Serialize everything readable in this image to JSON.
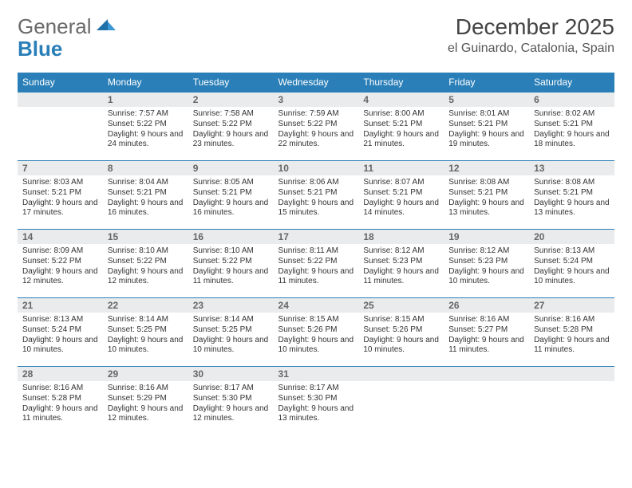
{
  "brand": {
    "part1": "General",
    "part2": "Blue"
  },
  "title": "December 2025",
  "location": "el Guinardo, Catalonia, Spain",
  "colors": {
    "header_bg": "#2a7fb8",
    "header_text": "#ffffff",
    "daynum_bg": "#e9ebec",
    "row_border": "#2a7fb8",
    "logo_gray": "#6a6a6a",
    "logo_blue": "#2a7fb8",
    "body_text": "#333333"
  },
  "daysOfWeek": [
    "Sunday",
    "Monday",
    "Tuesday",
    "Wednesday",
    "Thursday",
    "Friday",
    "Saturday"
  ],
  "startOffset": 1,
  "days": [
    {
      "n": 1,
      "sunrise": "7:57 AM",
      "sunset": "5:22 PM",
      "daylight": "9 hours and 24 minutes."
    },
    {
      "n": 2,
      "sunrise": "7:58 AM",
      "sunset": "5:22 PM",
      "daylight": "9 hours and 23 minutes."
    },
    {
      "n": 3,
      "sunrise": "7:59 AM",
      "sunset": "5:22 PM",
      "daylight": "9 hours and 22 minutes."
    },
    {
      "n": 4,
      "sunrise": "8:00 AM",
      "sunset": "5:21 PM",
      "daylight": "9 hours and 21 minutes."
    },
    {
      "n": 5,
      "sunrise": "8:01 AM",
      "sunset": "5:21 PM",
      "daylight": "9 hours and 19 minutes."
    },
    {
      "n": 6,
      "sunrise": "8:02 AM",
      "sunset": "5:21 PM",
      "daylight": "9 hours and 18 minutes."
    },
    {
      "n": 7,
      "sunrise": "8:03 AM",
      "sunset": "5:21 PM",
      "daylight": "9 hours and 17 minutes."
    },
    {
      "n": 8,
      "sunrise": "8:04 AM",
      "sunset": "5:21 PM",
      "daylight": "9 hours and 16 minutes."
    },
    {
      "n": 9,
      "sunrise": "8:05 AM",
      "sunset": "5:21 PM",
      "daylight": "9 hours and 16 minutes."
    },
    {
      "n": 10,
      "sunrise": "8:06 AM",
      "sunset": "5:21 PM",
      "daylight": "9 hours and 15 minutes."
    },
    {
      "n": 11,
      "sunrise": "8:07 AM",
      "sunset": "5:21 PM",
      "daylight": "9 hours and 14 minutes."
    },
    {
      "n": 12,
      "sunrise": "8:08 AM",
      "sunset": "5:21 PM",
      "daylight": "9 hours and 13 minutes."
    },
    {
      "n": 13,
      "sunrise": "8:08 AM",
      "sunset": "5:21 PM",
      "daylight": "9 hours and 13 minutes."
    },
    {
      "n": 14,
      "sunrise": "8:09 AM",
      "sunset": "5:22 PM",
      "daylight": "9 hours and 12 minutes."
    },
    {
      "n": 15,
      "sunrise": "8:10 AM",
      "sunset": "5:22 PM",
      "daylight": "9 hours and 12 minutes."
    },
    {
      "n": 16,
      "sunrise": "8:10 AM",
      "sunset": "5:22 PM",
      "daylight": "9 hours and 11 minutes."
    },
    {
      "n": 17,
      "sunrise": "8:11 AM",
      "sunset": "5:22 PM",
      "daylight": "9 hours and 11 minutes."
    },
    {
      "n": 18,
      "sunrise": "8:12 AM",
      "sunset": "5:23 PM",
      "daylight": "9 hours and 11 minutes."
    },
    {
      "n": 19,
      "sunrise": "8:12 AM",
      "sunset": "5:23 PM",
      "daylight": "9 hours and 10 minutes."
    },
    {
      "n": 20,
      "sunrise": "8:13 AM",
      "sunset": "5:24 PM",
      "daylight": "9 hours and 10 minutes."
    },
    {
      "n": 21,
      "sunrise": "8:13 AM",
      "sunset": "5:24 PM",
      "daylight": "9 hours and 10 minutes."
    },
    {
      "n": 22,
      "sunrise": "8:14 AM",
      "sunset": "5:25 PM",
      "daylight": "9 hours and 10 minutes."
    },
    {
      "n": 23,
      "sunrise": "8:14 AM",
      "sunset": "5:25 PM",
      "daylight": "9 hours and 10 minutes."
    },
    {
      "n": 24,
      "sunrise": "8:15 AM",
      "sunset": "5:26 PM",
      "daylight": "9 hours and 10 minutes."
    },
    {
      "n": 25,
      "sunrise": "8:15 AM",
      "sunset": "5:26 PM",
      "daylight": "9 hours and 10 minutes."
    },
    {
      "n": 26,
      "sunrise": "8:16 AM",
      "sunset": "5:27 PM",
      "daylight": "9 hours and 11 minutes."
    },
    {
      "n": 27,
      "sunrise": "8:16 AM",
      "sunset": "5:28 PM",
      "daylight": "9 hours and 11 minutes."
    },
    {
      "n": 28,
      "sunrise": "8:16 AM",
      "sunset": "5:28 PM",
      "daylight": "9 hours and 11 minutes."
    },
    {
      "n": 29,
      "sunrise": "8:16 AM",
      "sunset": "5:29 PM",
      "daylight": "9 hours and 12 minutes."
    },
    {
      "n": 30,
      "sunrise": "8:17 AM",
      "sunset": "5:30 PM",
      "daylight": "9 hours and 12 minutes."
    },
    {
      "n": 31,
      "sunrise": "8:17 AM",
      "sunset": "5:30 PM",
      "daylight": "9 hours and 13 minutes."
    }
  ],
  "labels": {
    "sunrise": "Sunrise:",
    "sunset": "Sunset:",
    "daylight": "Daylight:"
  }
}
